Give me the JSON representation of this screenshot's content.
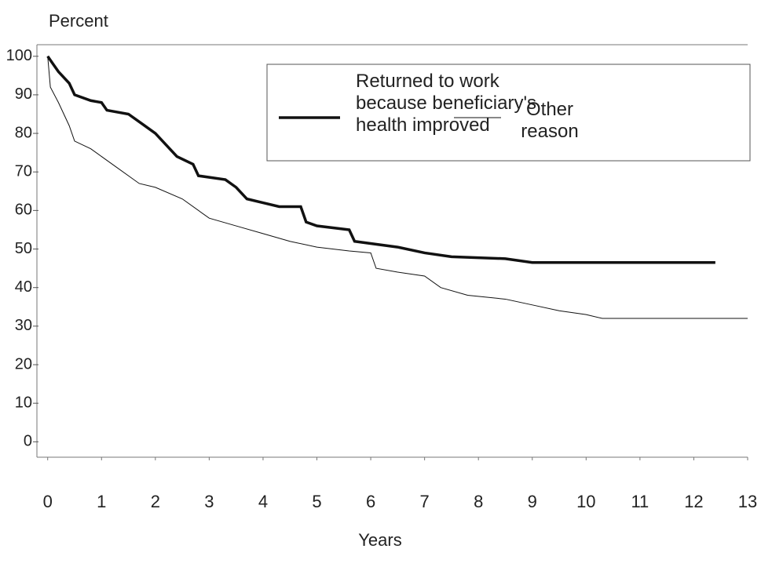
{
  "chart_data": {
    "type": "line",
    "y_label": "Percent",
    "x_label": "Years",
    "xlim": [
      -0.2,
      13
    ],
    "ylim": [
      -4,
      103
    ],
    "xticks": [
      0,
      1,
      2,
      3,
      4,
      5,
      6,
      7,
      8,
      9,
      10,
      11,
      12,
      13
    ],
    "yticks": [
      0,
      10,
      20,
      30,
      40,
      50,
      60,
      70,
      80,
      90,
      100
    ],
    "legend": "top-right",
    "series": [
      {
        "name": "Returned to work because beneficiary's health improved",
        "color": "#111111",
        "width": 3.5,
        "x": [
          0,
          0.1,
          0.2,
          0.4,
          0.5,
          0.8,
          1.0,
          1.1,
          1.5,
          1.8,
          2.0,
          2.2,
          2.4,
          2.7,
          2.8,
          3.3,
          3.5,
          3.7,
          4.0,
          4.3,
          4.7,
          4.8,
          5.0,
          5.6,
          5.7,
          6.5,
          7.0,
          7.5,
          8.5,
          9.0,
          10.0,
          12.4
        ],
        "values": [
          100,
          98,
          96,
          93,
          90,
          88.5,
          88,
          86,
          85,
          82,
          80,
          77,
          74,
          72,
          69,
          68,
          66,
          63,
          62,
          61,
          61,
          57,
          56,
          55,
          52,
          50.5,
          49,
          48,
          47.5,
          46.5,
          46.5,
          46.5
        ]
      },
      {
        "name": "Other reason",
        "color": "#111111",
        "width": 1,
        "x": [
          0,
          0.05,
          0.2,
          0.4,
          0.5,
          0.8,
          1.0,
          1.3,
          1.7,
          2.0,
          2.5,
          3.0,
          3.5,
          4.0,
          4.5,
          5.0,
          5.6,
          6.0,
          6.1,
          6.5,
          7.0,
          7.3,
          7.8,
          8.5,
          9.0,
          9.5,
          10.0,
          10.3,
          11.0,
          13.0
        ],
        "values": [
          100,
          92,
          88,
          82,
          78,
          76,
          74,
          71,
          67,
          66,
          63,
          58,
          56,
          54,
          52,
          50.5,
          49.5,
          49,
          45,
          44,
          43,
          40,
          38,
          37,
          35.5,
          34,
          33,
          32,
          32,
          32
        ]
      }
    ]
  }
}
